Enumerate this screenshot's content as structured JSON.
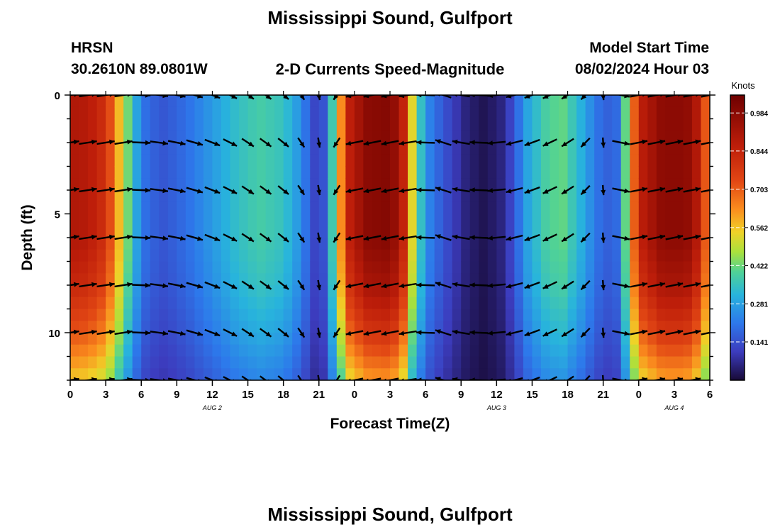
{
  "titles": {
    "top": "Mississippi Sound, Gulfport",
    "bottom": "Mississippi Sound, Gulfport"
  },
  "header": {
    "station": "HRSN",
    "coords": "30.2610N  89.0801W",
    "subtitle": "2-D Currents Speed-Magnitude",
    "model_label": "Model Start Time",
    "model_time": "08/02/2024 Hour 03"
  },
  "chart_data": {
    "type": "heatmap",
    "title": "2-D Currents Speed-Magnitude",
    "xlabel": "Forecast Time(Z)",
    "ylabel": "Depth (ft)",
    "x_range_hours": [
      0,
      54
    ],
    "y_range_ft": [
      0,
      12
    ],
    "x_tick_values": [
      0,
      3,
      6,
      9,
      12,
      15,
      18,
      21,
      24,
      27,
      30,
      33,
      36,
      39,
      42,
      45,
      48,
      51,
      54
    ],
    "x_tick_labels": [
      "0",
      "3",
      "6",
      "9",
      "12",
      "15",
      "18",
      "21",
      "0",
      "3",
      "6",
      "9",
      "12",
      "15",
      "18",
      "21",
      "0",
      "3",
      "6"
    ],
    "y_tick_values": [
      0,
      5,
      10
    ],
    "y_tick_labels": [
      "0",
      "5",
      "10"
    ],
    "day_labels": [
      {
        "text": "AUG 2",
        "hour": 12
      },
      {
        "text": "AUG 3",
        "hour": 36
      },
      {
        "text": "AUG 4",
        "hour": 51
      }
    ],
    "colorbar": {
      "title": "Knots",
      "min": 0,
      "max": 1.05,
      "ticks": [
        "0.984",
        "0.844",
        "0.703",
        "0.562",
        "0.422",
        "0.281",
        "0.141"
      ],
      "tick_values": [
        0.984,
        0.844,
        0.703,
        0.562,
        0.422,
        0.281,
        0.141
      ]
    },
    "speed_profile_knots": [
      {
        "hour": 0,
        "speed": 0.9
      },
      {
        "hour": 1.5,
        "speed": 0.88
      },
      {
        "hour": 3,
        "speed": 0.8
      },
      {
        "hour": 4.5,
        "speed": 0.5
      },
      {
        "hour": 5.5,
        "speed": 0.3
      },
      {
        "hour": 6.5,
        "speed": 0.18
      },
      {
        "hour": 8,
        "speed": 0.15
      },
      {
        "hour": 10,
        "speed": 0.2
      },
      {
        "hour": 12,
        "speed": 0.27
      },
      {
        "hour": 14,
        "speed": 0.34
      },
      {
        "hour": 16,
        "speed": 0.38
      },
      {
        "hour": 18,
        "speed": 0.35
      },
      {
        "hour": 19.5,
        "speed": 0.25
      },
      {
        "hour": 20.5,
        "speed": 0.12
      },
      {
        "hour": 21.5,
        "speed": 0.15
      },
      {
        "hour": 22.5,
        "speed": 0.5
      },
      {
        "hour": 23.5,
        "speed": 0.85
      },
      {
        "hour": 25,
        "speed": 0.98
      },
      {
        "hour": 27,
        "speed": 1.0
      },
      {
        "hour": 28,
        "speed": 0.9
      },
      {
        "hour": 28.8,
        "speed": 0.55
      },
      {
        "hour": 30,
        "speed": 0.25
      },
      {
        "hour": 31.5,
        "speed": 0.15
      },
      {
        "hour": 33.5,
        "speed": 0.05
      },
      {
        "hour": 35,
        "speed": 0.02
      },
      {
        "hour": 36.5,
        "speed": 0.06
      },
      {
        "hour": 37.5,
        "speed": 0.15
      },
      {
        "hour": 38.5,
        "speed": 0.28
      },
      {
        "hour": 40,
        "speed": 0.38
      },
      {
        "hour": 41.5,
        "speed": 0.42
      },
      {
        "hour": 43,
        "speed": 0.32
      },
      {
        "hour": 44.5,
        "speed": 0.2
      },
      {
        "hour": 46,
        "speed": 0.15
      },
      {
        "hour": 47,
        "speed": 0.45
      },
      {
        "hour": 48,
        "speed": 0.85
      },
      {
        "hour": 50,
        "speed": 0.98
      },
      {
        "hour": 52,
        "speed": 0.98
      },
      {
        "hour": 53.3,
        "speed": 0.85
      },
      {
        "hour": 54,
        "speed": 0.55
      }
    ],
    "depth_factor": [
      {
        "depth": 0,
        "factor": 1.0
      },
      {
        "depth": 6,
        "factor": 1.0
      },
      {
        "depth": 8,
        "factor": 0.93
      },
      {
        "depth": 10,
        "factor": 0.8
      },
      {
        "depth": 12,
        "factor": 0.62
      }
    ],
    "vector_depths_ft": [
      0,
      2,
      4,
      6,
      8,
      10,
      12
    ],
    "vector_directions_deg": [
      {
        "hour": 0,
        "deg": 75
      },
      {
        "hour": 2,
        "deg": 75
      },
      {
        "hour": 4.5,
        "deg": 75
      },
      {
        "hour": 6.5,
        "deg": 100
      },
      {
        "hour": 9,
        "deg": 110
      },
      {
        "hour": 12,
        "deg": 125
      },
      {
        "hour": 15,
        "deg": 140
      },
      {
        "hour": 18,
        "deg": 145
      },
      {
        "hour": 21,
        "deg": 175
      },
      {
        "hour": 22.5,
        "deg": 200
      },
      {
        "hour": 24,
        "deg": 250
      },
      {
        "hour": 27,
        "deg": 250
      },
      {
        "hour": 29,
        "deg": 255
      },
      {
        "hour": 31.5,
        "deg": 300
      },
      {
        "hour": 35,
        "deg": 270
      },
      {
        "hour": 38,
        "deg": 240
      },
      {
        "hour": 41.5,
        "deg": 225
      },
      {
        "hour": 44.5,
        "deg": 200
      },
      {
        "hour": 46.5,
        "deg": 110
      },
      {
        "hour": 48,
        "deg": 70
      },
      {
        "hour": 54,
        "deg": 70
      }
    ],
    "vector_speed_of_direction_column_hours": [
      0,
      1.5,
      3,
      4.5,
      6,
      7.5,
      9,
      10.5,
      12,
      13.5,
      15,
      16.5,
      18,
      19.5,
      21,
      22.5,
      24,
      25.5,
      27,
      28.5,
      30,
      31.5,
      33,
      34.5,
      36,
      37.5,
      39,
      40.5,
      42,
      43.5,
      45,
      46.5,
      48,
      49.5,
      51,
      52.5,
      54
    ]
  }
}
